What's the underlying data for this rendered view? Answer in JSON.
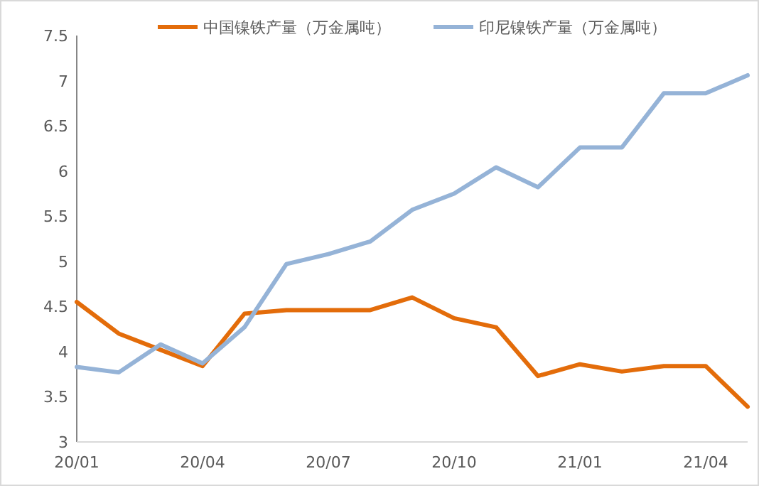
{
  "chart_data": {
    "type": "line",
    "categories": [
      "20/01",
      null,
      null,
      "20/04",
      null,
      null,
      "20/07",
      null,
      null,
      "20/10",
      null,
      null,
      "21/01",
      null,
      null,
      "21/04",
      null
    ],
    "series": [
      {
        "name": "中国镍铁产量（万金属吨）",
        "color": "#e36c0a",
        "values": [
          4.55,
          4.2,
          4.02,
          3.84,
          4.42,
          4.46,
          4.46,
          4.46,
          4.6,
          4.37,
          4.27,
          3.73,
          3.86,
          3.78,
          3.84,
          3.84,
          3.39
        ]
      },
      {
        "name": "印尼镍铁产量（万金属吨）",
        "color": "#95b3d7",
        "values": [
          3.83,
          3.77,
          4.08,
          3.87,
          4.27,
          4.97,
          5.08,
          5.22,
          5.57,
          5.75,
          6.04,
          5.82,
          6.26,
          6.26,
          6.86,
          6.86,
          7.06
        ]
      }
    ],
    "ylim": [
      3,
      7.5
    ],
    "yticks": [
      3,
      3.5,
      4,
      4.5,
      5,
      5.5,
      6,
      6.5,
      7,
      7.5
    ],
    "legend": "top",
    "grid": false,
    "marker": "none",
    "line_style": "solid"
  }
}
